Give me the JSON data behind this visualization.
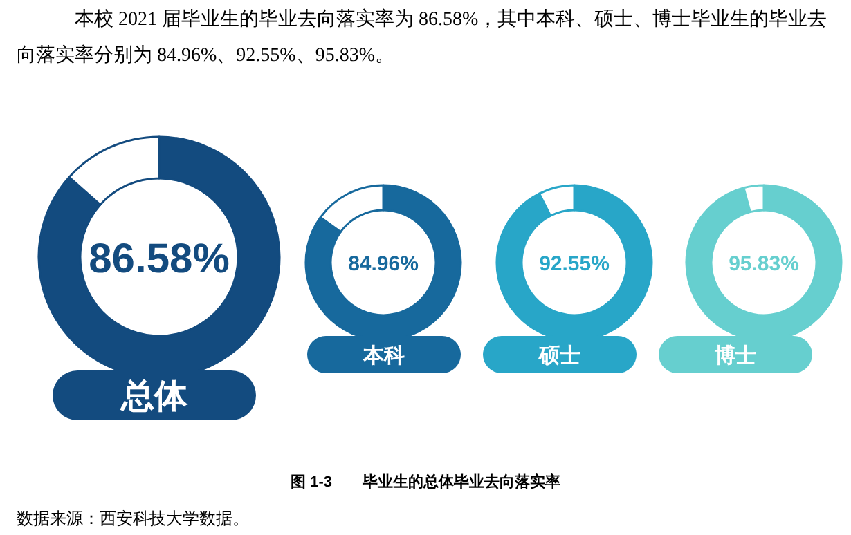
{
  "chart_data": [
    {
      "type": "other",
      "annotations": [
        "本校 2021 届毕业生的毕业去向落实率为 86.58%，其中本科、硕士、博士毕业生的毕业去向落实率分别为 84.96%、92.55%、95.83%。",
        "图 1-3　　毕业生的总体毕业去向落实率",
        "数据来源：西安科技大学数据。"
      ]
    },
    {
      "type": "donut",
      "title": "总体",
      "categories": [
        null,
        null
      ],
      "values": [
        86.58,
        13.42
      ],
      "colors": [
        "#134b7f",
        "#ffffff"
      ],
      "value_labels": [
        "86.58%",
        null
      ]
    },
    {
      "type": "donut",
      "title": "本科",
      "categories": [
        null,
        null
      ],
      "values": [
        84.96,
        15.04
      ],
      "colors": [
        "#17699d",
        "#ffffff"
      ],
      "value_labels": [
        "84.96%",
        null
      ]
    },
    {
      "type": "donut",
      "title": "硕士",
      "categories": [
        null,
        null
      ],
      "values": [
        92.55,
        7.45
      ],
      "colors": [
        "#28a6c8",
        "#ffffff"
      ],
      "value_labels": [
        "92.55%",
        null
      ]
    },
    {
      "type": "donut",
      "title": "博士",
      "categories": [
        null,
        null
      ],
      "values": [
        95.83,
        4.17
      ],
      "colors": [
        "#66cfcf",
        "#ffffff"
      ],
      "value_labels": [
        "95.83%",
        null
      ]
    }
  ]
}
